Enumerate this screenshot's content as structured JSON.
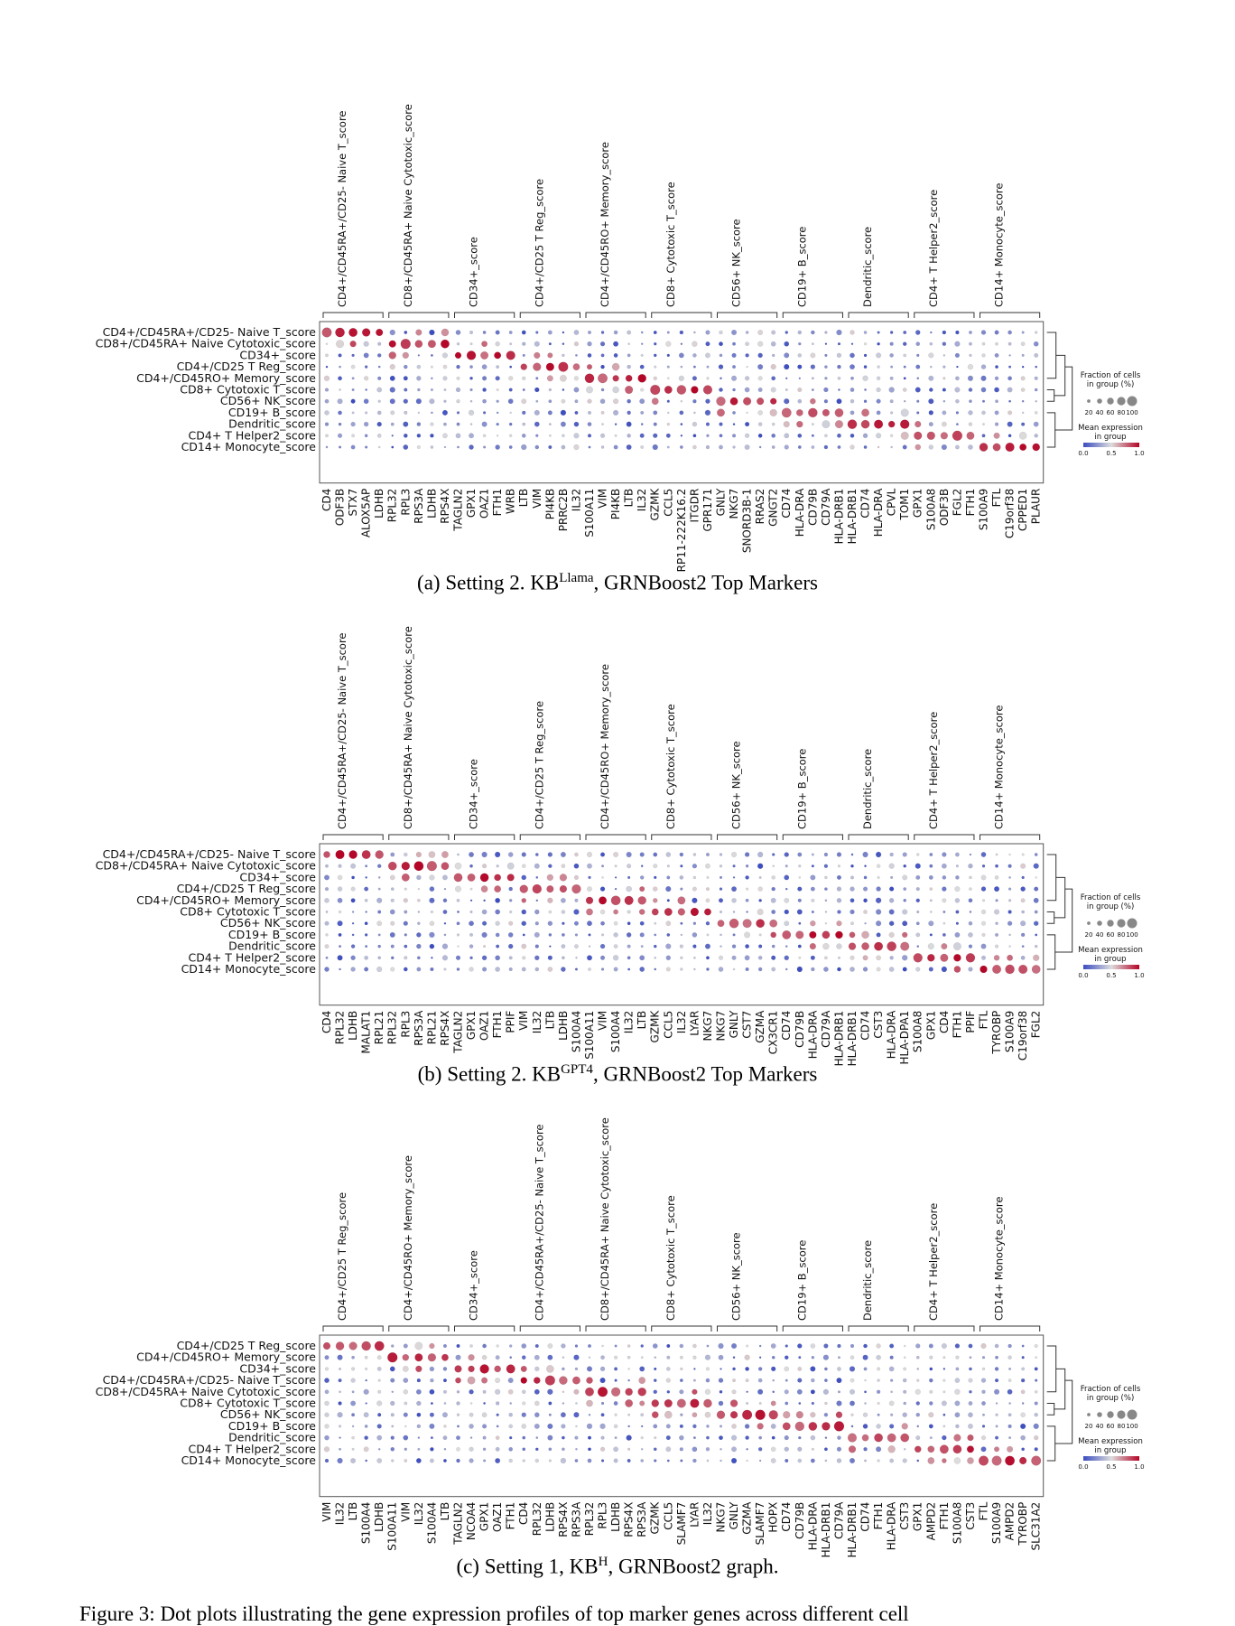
{
  "figure_caption": "Figure 3: Dot plots illustrating the gene expression profiles of top marker genes across different cell",
  "legend": {
    "fraction_title_line1": "Fraction of cells",
    "fraction_title_line2": "in group (%)",
    "fraction_ticks": [
      "20",
      "40",
      "60",
      "80",
      "100"
    ],
    "expression_title_line1": "Mean expression",
    "expression_title_line2": "in group",
    "expression_ticks": [
      "0.0",
      "0.5",
      "1.0"
    ],
    "colormap": [
      "#3b4cc0",
      "#dddddd",
      "#b40426"
    ]
  },
  "chart_data": [
    {
      "type": "dotplot",
      "caption_main": "(a) Setting 2. KB",
      "caption_sup": "Llama",
      "caption_tail": ", GRNBoost2 Top Markers",
      "rows": [
        "CD4+/CD45RA+/CD25- Naive T_score",
        "CD8+/CD45RA+ Naive Cytotoxic_score",
        "CD34+_score",
        "CD4+/CD25 T Reg_score",
        "CD4+/CD45RO+ Memory_score",
        "CD8+ Cytotoxic T_score",
        "CD56+ NK_score",
        "CD19+ B_score",
        "Dendritic_score",
        "CD4+ T Helper2_score",
        "CD14+ Monocyte_score"
      ],
      "groups": [
        {
          "label": "CD4+/CD45RA+/CD25- Naive T_score",
          "genes": [
            "CD4",
            "ODF3B",
            "STX7",
            "ALOX5AP",
            "LDHB"
          ],
          "row": 0
        },
        {
          "label": "CD8+/CD45RA+ Naive Cytotoxic_score",
          "genes": [
            "RPL32",
            "RPL3",
            "RPS3A",
            "LDHB",
            "RPS4X"
          ],
          "row": 1
        },
        {
          "label": "CD34+_score",
          "genes": [
            "TAGLN2",
            "GPX1",
            "OAZ1",
            "FTH1",
            "WRB"
          ],
          "row": 2
        },
        {
          "label": "CD4+/CD25 T Reg_score",
          "genes": [
            "LTB",
            "VIM",
            "PI4KB",
            "PRRC2B",
            "IL32"
          ],
          "row": 3
        },
        {
          "label": "CD4+/CD45RO+ Memory_score",
          "genes": [
            "S100A11",
            "VIM",
            "PI4KB",
            "LTB",
            "IL32"
          ],
          "row": 4
        },
        {
          "label": "CD8+ Cytotoxic T_score",
          "genes": [
            "GZMK",
            "CCL5",
            "RP11-222K16.2",
            "ITGDR",
            "GPR171"
          ],
          "row": 5
        },
        {
          "label": "CD56+ NK_score",
          "genes": [
            "GNLY",
            "NKG7",
            "SNORD3B-1",
            "RRAS2",
            "GNGT2"
          ],
          "row": 6
        },
        {
          "label": "CD19+ B_score",
          "genes": [
            "CD74",
            "HLA-DRA",
            "CD79B",
            "CD79A",
            "HLA-DRB1"
          ],
          "row": 7
        },
        {
          "label": "Dendritic_score",
          "genes": [
            "HLA-DRB1",
            "CD74",
            "HLA-DRA",
            "CPVL",
            "TOM1"
          ],
          "row": 8
        },
        {
          "label": "CD4+ T Helper2_score",
          "genes": [
            "GPX1",
            "S100A8",
            "ODF3B",
            "FGL2",
            "FTH1"
          ],
          "row": 9
        },
        {
          "label": "CD14+ Monocyte_score",
          "genes": [
            "S100A9",
            "FTL",
            "C19orf38",
            "CPPED1",
            "PLAUR"
          ],
          "row": 10
        }
      ]
    },
    {
      "type": "dotplot",
      "caption_main": "(b) Setting 2. KB",
      "caption_sup": "GPT4",
      "caption_tail": ", GRNBoost2 Top Markers",
      "rows": [
        "CD4+/CD45RA+/CD25- Naive T_score",
        "CD8+/CD45RA+ Naive Cytotoxic_score",
        "CD34+_score",
        "CD4+/CD25 T Reg_score",
        "CD4+/CD45RO+ Memory_score",
        "CD8+ Cytotoxic T_score",
        "CD56+ NK_score",
        "CD19+ B_score",
        "Dendritic_score",
        "CD4+ T Helper2_score",
        "CD14+ Monocyte_score"
      ],
      "groups": [
        {
          "label": "CD4+/CD45RA+/CD25- Naive T_score",
          "genes": [
            "CD4",
            "RPL32",
            "LDHB",
            "MALAT1",
            "RPL21"
          ],
          "row": 0
        },
        {
          "label": "CD8+/CD45RA+ Naive Cytotoxic_score",
          "genes": [
            "RPL32",
            "RPL3",
            "RPS3A",
            "RPL21",
            "RPS4X"
          ],
          "row": 1
        },
        {
          "label": "CD34+_score",
          "genes": [
            "TAGLN2",
            "GPX1",
            "OAZ1",
            "FTH1",
            "PPIF"
          ],
          "row": 2
        },
        {
          "label": "CD4+/CD25 T Reg_score",
          "genes": [
            "VIM",
            "IL32",
            "LTB",
            "LDHB",
            "S100A4"
          ],
          "row": 3
        },
        {
          "label": "CD4+/CD45RO+ Memory_score",
          "genes": [
            "S100A11",
            "VIM",
            "S100A4",
            "IL32",
            "LTB"
          ],
          "row": 4
        },
        {
          "label": "CD8+ Cytotoxic T_score",
          "genes": [
            "GZMK",
            "CCL5",
            "IL32",
            "LYAR",
            "NKG7"
          ],
          "row": 5
        },
        {
          "label": "CD56+ NK_score",
          "genes": [
            "NKG7",
            "GNLY",
            "CST7",
            "GZMA",
            "CX3CR1"
          ],
          "row": 6
        },
        {
          "label": "CD19+ B_score",
          "genes": [
            "CD74",
            "CD79B",
            "HLA-DRA",
            "CD79A",
            "HLA-DRB1"
          ],
          "row": 7
        },
        {
          "label": "Dendritic_score",
          "genes": [
            "HLA-DRB1",
            "CD74",
            "CST3",
            "HLA-DRA",
            "HLA-DPA1"
          ],
          "row": 8
        },
        {
          "label": "CD4+ T Helper2_score",
          "genes": [
            "S100A8",
            "GPX1",
            "CD4",
            "FTH1",
            "PPIF"
          ],
          "row": 9
        },
        {
          "label": "CD14+ Monocyte_score",
          "genes": [
            "FTL",
            "TYROBP",
            "S100A9",
            "C19orf38",
            "FGL2"
          ],
          "row": 10
        }
      ]
    },
    {
      "type": "dotplot",
      "caption_main": "(c) Setting 1, KB",
      "caption_sup": "H",
      "caption_tail": ", GRNBoost2 graph.",
      "rows": [
        "CD4+/CD25 T Reg_score",
        "CD4+/CD45RO+ Memory_score",
        "CD34+_score",
        "CD4+/CD45RA+/CD25- Naive T_score",
        "CD8+/CD45RA+ Naive Cytotoxic_score",
        "CD8+ Cytotoxic T_score",
        "CD56+ NK_score",
        "CD19+ B_score",
        "Dendritic_score",
        "CD4+ T Helper2_score",
        "CD14+ Monocyte_score"
      ],
      "groups": [
        {
          "label": "CD4+/CD25 T Reg_score",
          "genes": [
            "VIM",
            "IL32",
            "LTB",
            "S100A4",
            "LDHB"
          ],
          "row": 0
        },
        {
          "label": "CD4+/CD45RO+ Memory_score",
          "genes": [
            "S100A11",
            "VIM",
            "IL32",
            "S100A4",
            "LTB"
          ],
          "row": 1
        },
        {
          "label": "CD34+_score",
          "genes": [
            "TAGLN2",
            "NCOA4",
            "GPX1",
            "OAZ1",
            "FTH1"
          ],
          "row": 2
        },
        {
          "label": "CD4+/CD45RA+/CD25- Naive T_score",
          "genes": [
            "CD4",
            "RPL32",
            "LDHB",
            "RPS4X",
            "RPS3A"
          ],
          "row": 3
        },
        {
          "label": "CD8+/CD45RA+ Naive Cytotoxic_score",
          "genes": [
            "RPL32",
            "RPL3",
            "LDHB",
            "RPS4X",
            "RPS3A"
          ],
          "row": 4
        },
        {
          "label": "CD8+ Cytotoxic T_score",
          "genes": [
            "GZMK",
            "CCL5",
            "SLAMF7",
            "LYAR",
            "IL32"
          ],
          "row": 5
        },
        {
          "label": "CD56+ NK_score",
          "genes": [
            "NKG7",
            "GNLY",
            "GZMA",
            "SLAMF7",
            "HOPX"
          ],
          "row": 6
        },
        {
          "label": "CD19+ B_score",
          "genes": [
            "CD74",
            "CD79B",
            "HLA-DRA",
            "HLA-DRB1",
            "CD79A"
          ],
          "row": 7
        },
        {
          "label": "Dendritic_score",
          "genes": [
            "HLA-DRB1",
            "CD74",
            "FTH1",
            "HLA-DRA",
            "CST3"
          ],
          "row": 8
        },
        {
          "label": "CD4+ T Helper2_score",
          "genes": [
            "GPX1",
            "AMPD2",
            "FTH1",
            "S100A8",
            "CST3"
          ],
          "row": 9
        },
        {
          "label": "CD14+ Monocyte_score",
          "genes": [
            "FTL",
            "S100A9",
            "AMPD2",
            "TYROBP",
            "SLC31A2"
          ],
          "row": 10
        }
      ]
    }
  ]
}
